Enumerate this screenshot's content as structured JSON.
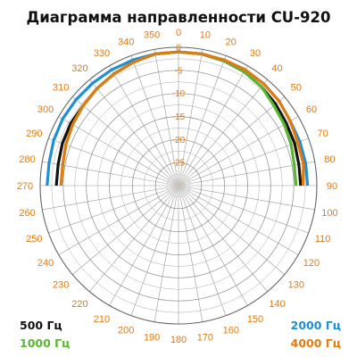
{
  "chart_data": {
    "type": "polar-line",
    "title": "Диаграмма направленности CU-920",
    "angle_ticks": [
      0,
      10,
      20,
      30,
      40,
      50,
      60,
      70,
      80,
      90,
      100,
      110,
      120,
      130,
      140,
      150,
      160,
      170,
      180,
      190,
      200,
      210,
      220,
      230,
      240,
      250,
      260,
      270,
      280,
      290,
      300,
      310,
      320,
      330,
      340,
      350
    ],
    "radial_ticks": [
      0,
      -5,
      -10,
      -15,
      -20,
      -25,
      -30
    ],
    "radial_range": [
      -30,
      0
    ],
    "angle_direction": "clockwise",
    "angle_zero": "top",
    "grid": true,
    "legend": [
      {
        "name": "500 Гц",
        "color": "#111111",
        "position": "bottom-left"
      },
      {
        "name": "1000 Гц",
        "color": "#5cb531",
        "position": "bottom-left"
      },
      {
        "name": "2000 Гц",
        "color": "#1e90d2",
        "position": "bottom-right"
      },
      {
        "name": "4000 Гц",
        "color": "#e07b10",
        "position": "bottom-right"
      }
    ],
    "series": [
      {
        "name": "500 Гц",
        "color": "#111111",
        "angles": [
          270,
          280,
          290,
          300,
          310,
          320,
          330,
          340,
          350,
          0,
          10,
          20,
          30,
          40,
          50,
          60,
          70,
          80,
          90
        ],
        "values": [
          -3.5,
          -3.5,
          -3.2,
          -3,
          -3,
          -2.5,
          -2,
          -1.5,
          -1,
          -1,
          -1,
          -1.2,
          -1.5,
          -2,
          -2.5,
          -3,
          -3.2,
          -3.5,
          -3.5
        ]
      },
      {
        "name": "1000 Гц",
        "color": "#5cb531",
        "angles": [
          270,
          280,
          290,
          300,
          310,
          320,
          330,
          340,
          350,
          0,
          10,
          20,
          30,
          40,
          50,
          60,
          70,
          80,
          90
        ],
        "values": [
          -4.5,
          -4.5,
          -4,
          -3.5,
          -3,
          -2.5,
          -2,
          -1.5,
          -1,
          -1,
          -1,
          -1.2,
          -1.5,
          -2,
          -3,
          -3.5,
          -4,
          -4.5,
          -4.5
        ]
      },
      {
        "name": "2000 Гц",
        "color": "#1e90d2",
        "angles": [
          270,
          280,
          290,
          300,
          310,
          320,
          330,
          340,
          350,
          0,
          10,
          20,
          30,
          40,
          50,
          60,
          70,
          80,
          90
        ],
        "values": [
          -1.5,
          -1.5,
          -1.2,
          -1,
          -1,
          -1,
          -1,
          -1,
          -1,
          -1,
          -1,
          -1,
          -1,
          -1.2,
          -1.5,
          -2,
          -2,
          -2,
          -2
        ]
      },
      {
        "name": "4000 Гц",
        "color": "#e07b10",
        "angles": [
          270,
          280,
          290,
          300,
          310,
          320,
          330,
          340,
          350,
          0,
          10,
          20,
          30,
          40,
          50,
          60,
          70,
          80,
          90
        ],
        "values": [
          -4.5,
          -4.5,
          -4,
          -3.5,
          -3,
          -2.5,
          -2,
          -1.5,
          -1,
          -1,
          -1,
          -1,
          -1,
          -1.2,
          -1.5,
          -2,
          -2.5,
          -2.5,
          -3
        ]
      }
    ]
  }
}
